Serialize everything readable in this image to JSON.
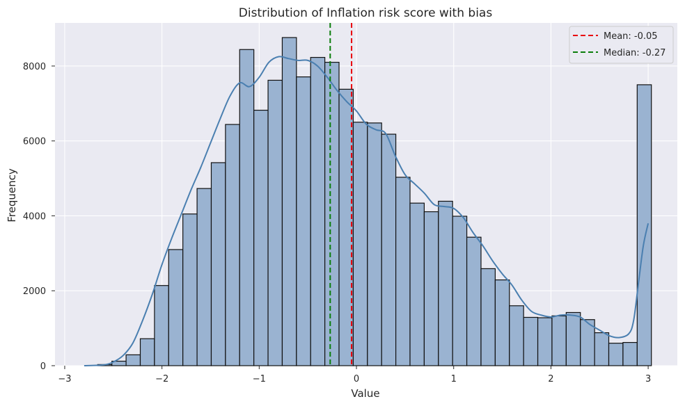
{
  "chart_data": {
    "type": "bar",
    "subtype": "histogram",
    "title": "Distribution of Inflation risk score with bias",
    "xlabel": "Value",
    "ylabel": "Frequency",
    "xlim": [
      -3.1,
      3.3
    ],
    "ylim": [
      0,
      9150
    ],
    "xticks": [
      -3,
      -2,
      -1,
      0,
      1,
      2,
      3
    ],
    "xtick_labels": [
      "−3",
      "−2",
      "−1",
      "0",
      "1",
      "2",
      "3"
    ],
    "yticks": [
      0,
      2000,
      4000,
      6000,
      8000
    ],
    "ytick_labels": [
      "0",
      "2000",
      "4000",
      "6000",
      "8000"
    ],
    "grid": true,
    "legend_position": "top-right",
    "colors": {
      "background": "#eaeaf2",
      "bar_fill": "#9ab3d1",
      "bar_edge": "#111111",
      "kde": "#4a7fb0",
      "mean": "#e8000b",
      "median": "#0a7d0a",
      "grid": "#ffffff"
    },
    "bin_edges": [
      -2.661,
      -2.515,
      -2.369,
      -2.223,
      -2.077,
      -1.931,
      -1.785,
      -1.639,
      -1.493,
      -1.347,
      -1.201,
      -1.055,
      -0.909,
      -0.763,
      -0.617,
      -0.471,
      -0.325,
      -0.179,
      -0.033,
      0.113,
      0.259,
      0.405,
      0.551,
      0.697,
      0.843,
      0.989,
      1.135,
      1.281,
      1.427,
      1.573,
      1.719,
      1.865,
      2.011,
      2.157,
      2.303,
      2.449,
      2.595,
      2.741,
      2.887,
      3.033
    ],
    "counts": [
      30,
      120,
      290,
      720,
      2140,
      3100,
      4050,
      4730,
      5420,
      6440,
      8440,
      6820,
      7620,
      8760,
      7710,
      8230,
      8100,
      7380,
      6500,
      6480,
      6180,
      5030,
      4340,
      4110,
      4390,
      3990,
      3430,
      2590,
      2290,
      1600,
      1290,
      1280,
      1330,
      1420,
      1230,
      880,
      600,
      620,
      7500
    ],
    "kde": {
      "x": [
        -2.8,
        -2.6,
        -2.5,
        -2.4,
        -2.3,
        -2.2,
        -2.1,
        -2.0,
        -1.9,
        -1.8,
        -1.7,
        -1.6,
        -1.5,
        -1.4,
        -1.3,
        -1.2,
        -1.1,
        -1.0,
        -0.9,
        -0.8,
        -0.7,
        -0.6,
        -0.5,
        -0.4,
        -0.3,
        -0.2,
        -0.1,
        0.0,
        0.1,
        0.2,
        0.3,
        0.4,
        0.5,
        0.6,
        0.7,
        0.8,
        0.9,
        1.0,
        1.1,
        1.2,
        1.3,
        1.4,
        1.5,
        1.6,
        1.7,
        1.8,
        1.9,
        2.0,
        2.1,
        2.2,
        2.3,
        2.4,
        2.5,
        2.6,
        2.7,
        2.8,
        2.85,
        2.9,
        2.95,
        3.0
      ],
      "y": [
        0,
        20,
        100,
        270,
        600,
        1200,
        1900,
        2700,
        3400,
        4050,
        4700,
        5300,
        5950,
        6600,
        7200,
        7550,
        7450,
        7700,
        8100,
        8250,
        8200,
        8150,
        8150,
        8000,
        7700,
        7350,
        7050,
        6800,
        6450,
        6300,
        6200,
        5600,
        5100,
        4850,
        4600,
        4300,
        4250,
        4200,
        3950,
        3550,
        3200,
        2800,
        2450,
        2150,
        1750,
        1450,
        1350,
        1300,
        1350,
        1350,
        1300,
        1100,
        950,
        800,
        750,
        850,
        1200,
        2200,
        3200,
        3800
      ]
    },
    "mean": {
      "value": -0.05,
      "label": "Mean: -0.05"
    },
    "median": {
      "value": -0.27,
      "label": "Median: -0.27"
    }
  }
}
